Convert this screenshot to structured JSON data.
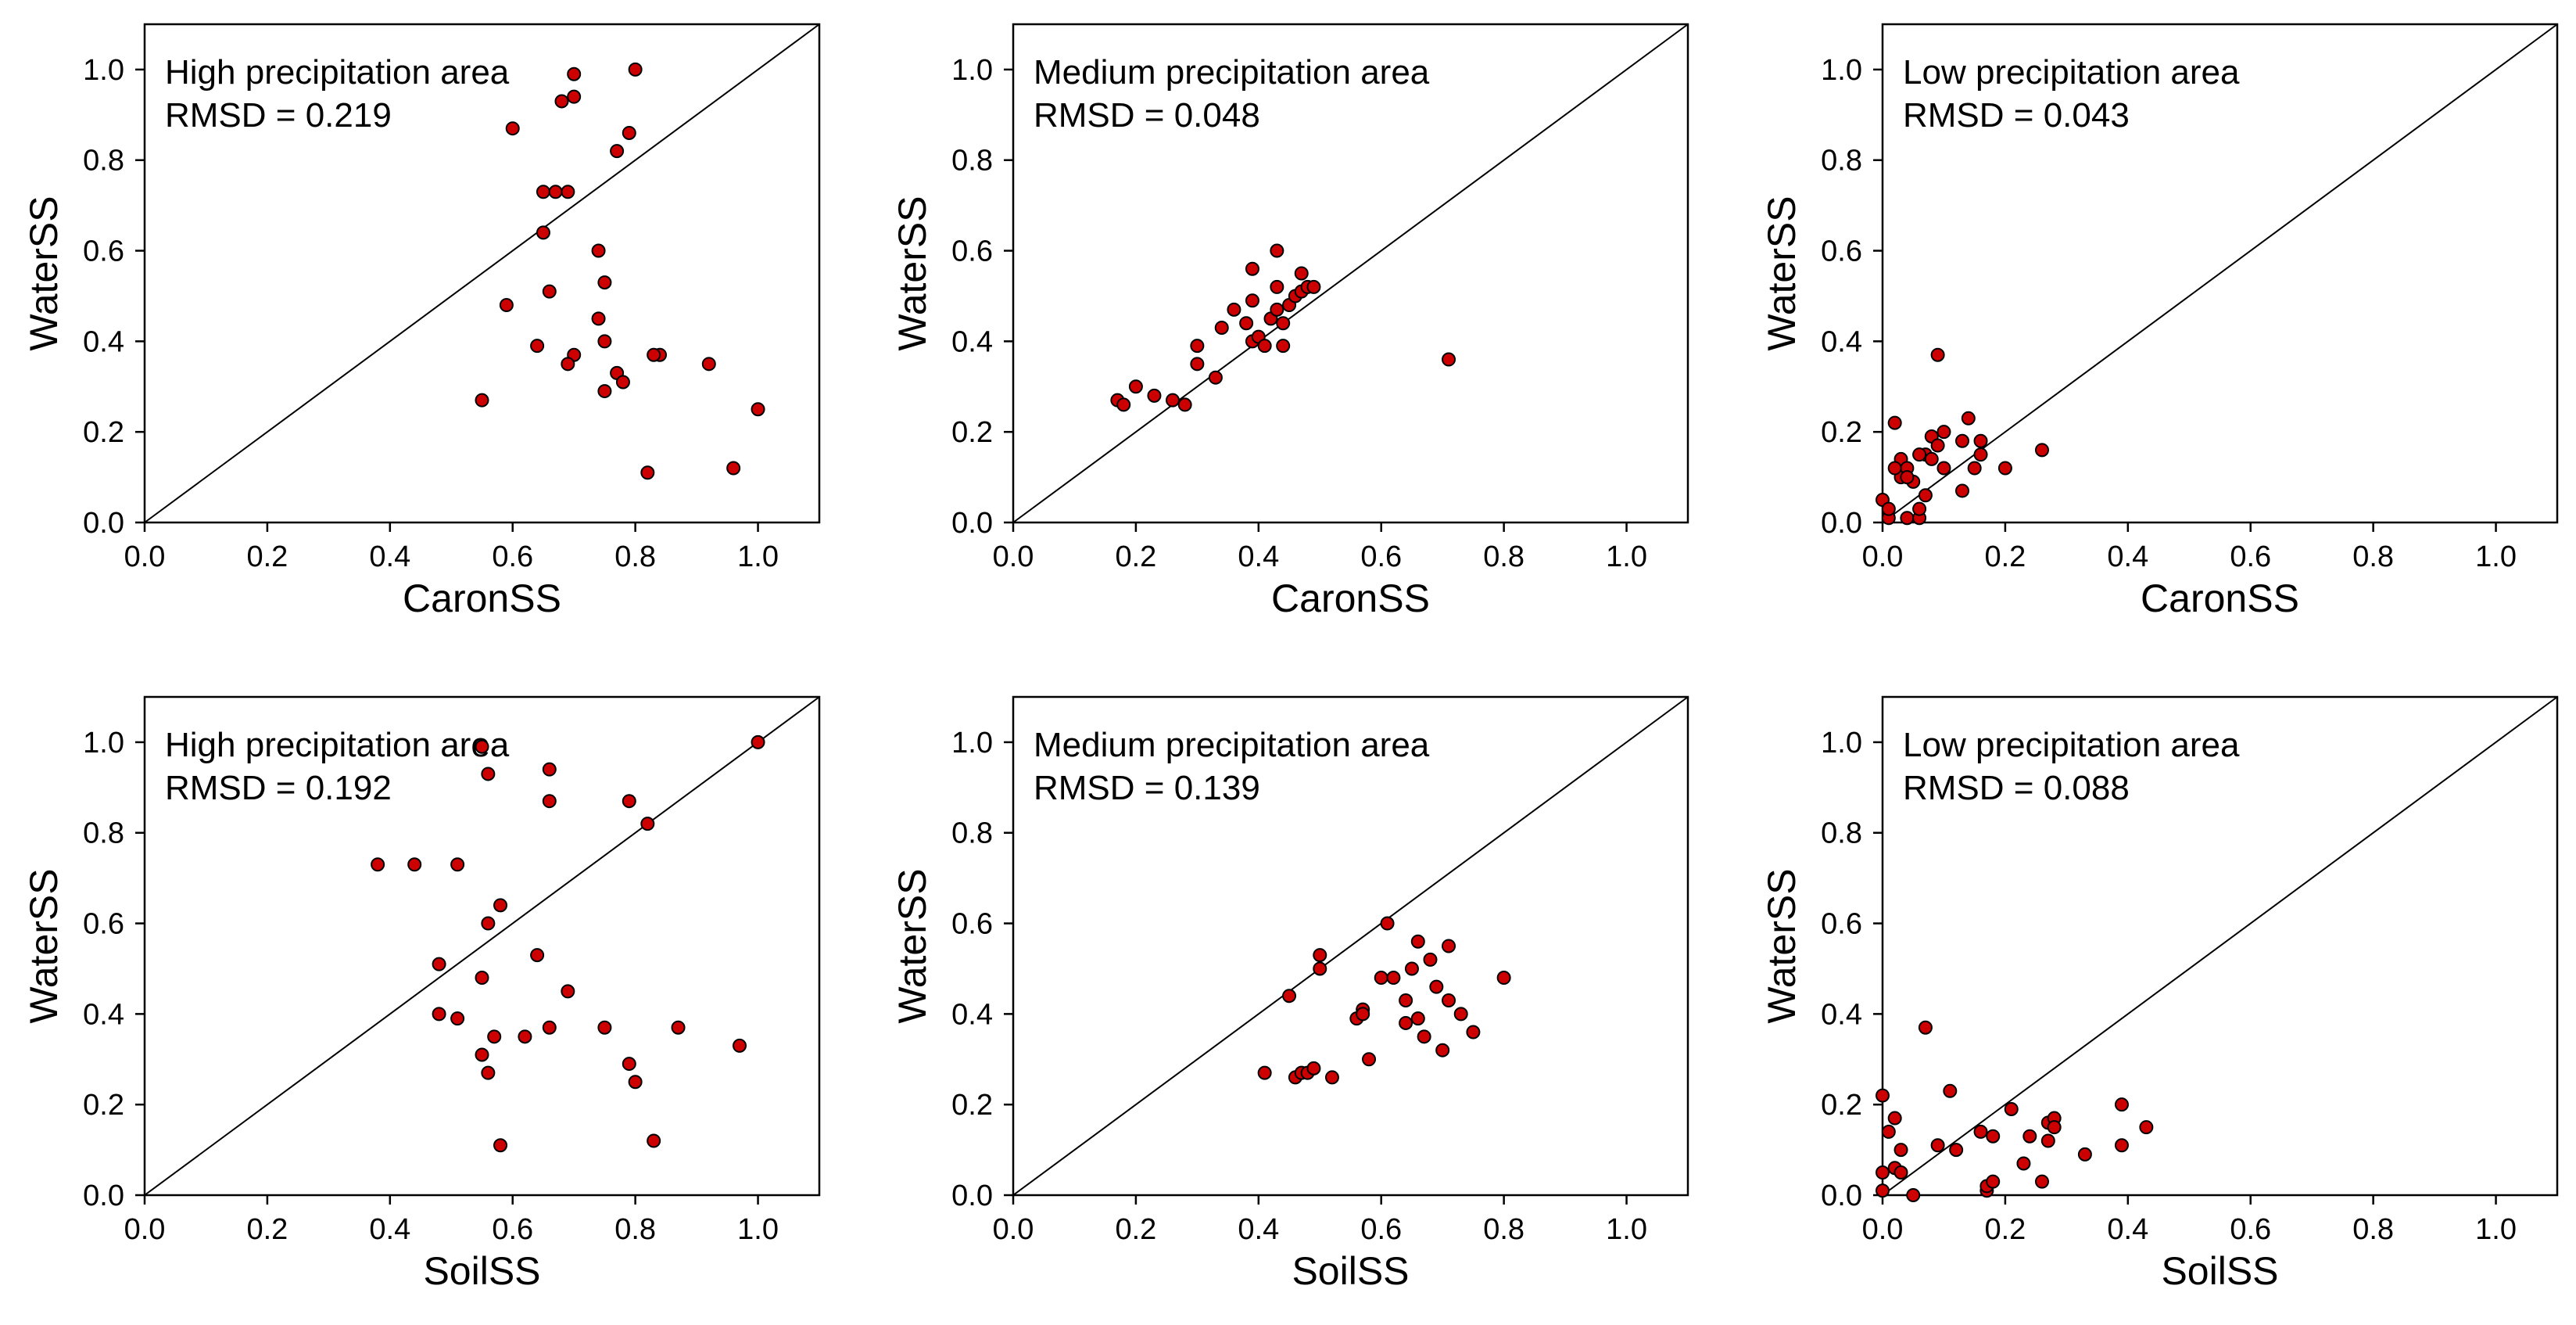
{
  "chart_data": [
    {
      "type": "scatter",
      "annotation": "High precipitation area",
      "rmsd": "RMSD = 0.219",
      "xlabel": "CaronSS",
      "ylabel": "WaterSS",
      "xlim": [
        0,
        1.1
      ],
      "ylim": [
        0,
        1.1
      ],
      "xticks": [
        "0.0",
        "0.2",
        "0.4",
        "0.6",
        "0.8",
        "1.0"
      ],
      "yticks": [
        "0.0",
        "0.2",
        "0.4",
        "0.6",
        "0.8",
        "1.0"
      ],
      "reference_line": "1:1",
      "x": [
        0.7,
        0.8,
        0.7,
        0.68,
        0.6,
        0.79,
        0.77,
        0.65,
        0.67,
        0.69,
        0.65,
        0.74,
        0.66,
        0.75,
        0.59,
        0.74,
        0.64,
        0.75,
        0.7,
        0.69,
        0.84,
        0.83,
        0.77,
        0.78,
        0.92,
        0.75,
        0.55,
        1.0,
        0.96,
        0.82
      ],
      "y": [
        0.99,
        1.0,
        0.94,
        0.93,
        0.87,
        0.86,
        0.82,
        0.73,
        0.73,
        0.73,
        0.64,
        0.6,
        0.51,
        0.53,
        0.48,
        0.45,
        0.39,
        0.4,
        0.37,
        0.35,
        0.37,
        0.37,
        0.33,
        0.31,
        0.35,
        0.29,
        0.27,
        0.25,
        0.12,
        0.11
      ]
    },
    {
      "type": "scatter",
      "annotation": "Medium precipitation area",
      "rmsd": "RMSD = 0.048",
      "xlabel": "CaronSS",
      "ylabel": "WaterSS",
      "xlim": [
        0,
        1.1
      ],
      "ylim": [
        0,
        1.1
      ],
      "xticks": [
        "0.0",
        "0.2",
        "0.4",
        "0.6",
        "0.8",
        "1.0"
      ],
      "yticks": [
        "0.0",
        "0.2",
        "0.4",
        "0.6",
        "0.8",
        "1.0"
      ],
      "reference_line": "1:1",
      "x": [
        0.17,
        0.18,
        0.2,
        0.23,
        0.26,
        0.28,
        0.3,
        0.3,
        0.33,
        0.34,
        0.36,
        0.38,
        0.39,
        0.39,
        0.4,
        0.41,
        0.42,
        0.43,
        0.43,
        0.43,
        0.44,
        0.44,
        0.45,
        0.46,
        0.47,
        0.47,
        0.48,
        0.49,
        0.39,
        0.71
      ],
      "y": [
        0.27,
        0.26,
        0.3,
        0.28,
        0.27,
        0.26,
        0.35,
        0.39,
        0.32,
        0.43,
        0.47,
        0.44,
        0.4,
        0.56,
        0.41,
        0.39,
        0.45,
        0.6,
        0.52,
        0.47,
        0.39,
        0.44,
        0.48,
        0.5,
        0.51,
        0.55,
        0.52,
        0.52,
        0.49,
        0.36
      ]
    },
    {
      "type": "scatter",
      "annotation": "Low precipitation area",
      "rmsd": "RMSD = 0.043",
      "xlabel": "CaronSS",
      "ylabel": "WaterSS",
      "xlim": [
        0,
        1.1
      ],
      "ylim": [
        0,
        1.1
      ],
      "xticks": [
        "0.0",
        "0.2",
        "0.4",
        "0.6",
        "0.8",
        "1.0"
      ],
      "yticks": [
        "0.0",
        "0.2",
        "0.4",
        "0.6",
        "0.8",
        "1.0"
      ],
      "reference_line": "1:1",
      "x": [
        0.0,
        0.01,
        0.01,
        0.02,
        0.03,
        0.03,
        0.04,
        0.04,
        0.05,
        0.06,
        0.06,
        0.07,
        0.07,
        0.08,
        0.08,
        0.09,
        0.09,
        0.1,
        0.1,
        0.13,
        0.14,
        0.15,
        0.16,
        0.16,
        0.2,
        0.26,
        0.02,
        0.04,
        0.06,
        0.13
      ],
      "y": [
        0.05,
        0.01,
        0.03,
        0.22,
        0.14,
        0.1,
        0.12,
        0.01,
        0.09,
        0.01,
        0.03,
        0.15,
        0.06,
        0.14,
        0.19,
        0.37,
        0.17,
        0.2,
        0.12,
        0.07,
        0.23,
        0.12,
        0.18,
        0.15,
        0.12,
        0.16,
        0.12,
        0.1,
        0.15,
        0.18
      ]
    },
    {
      "type": "scatter",
      "annotation": "High precipitation area",
      "rmsd": "RMSD = 0.192",
      "xlabel": "SoilSS",
      "ylabel": "WaterSS",
      "xlim": [
        0,
        1.1
      ],
      "ylim": [
        0,
        1.1
      ],
      "xticks": [
        "0.0",
        "0.2",
        "0.4",
        "0.6",
        "0.8",
        "1.0"
      ],
      "yticks": [
        "0.0",
        "0.2",
        "0.4",
        "0.6",
        "0.8",
        "1.0"
      ],
      "reference_line": "1:1",
      "x": [
        1.0,
        0.55,
        0.66,
        0.56,
        0.66,
        0.79,
        0.82,
        0.38,
        0.44,
        0.51,
        0.58,
        0.56,
        0.48,
        0.64,
        0.55,
        0.69,
        0.48,
        0.51,
        0.57,
        0.62,
        0.66,
        0.75,
        0.87,
        0.55,
        0.97,
        0.79,
        0.8,
        0.56,
        0.83,
        0.58
      ],
      "y": [
        1.0,
        0.99,
        0.94,
        0.93,
        0.87,
        0.87,
        0.82,
        0.73,
        0.73,
        0.73,
        0.64,
        0.6,
        0.51,
        0.53,
        0.48,
        0.45,
        0.4,
        0.39,
        0.35,
        0.35,
        0.37,
        0.37,
        0.37,
        0.31,
        0.33,
        0.29,
        0.25,
        0.27,
        0.12,
        0.11
      ]
    },
    {
      "type": "scatter",
      "annotation": "Medium precipitation area",
      "rmsd": "RMSD = 0.139",
      "xlabel": "SoilSS",
      "ylabel": "WaterSS",
      "xlim": [
        0,
        1.1
      ],
      "ylim": [
        0,
        1.1
      ],
      "xticks": [
        "0.0",
        "0.2",
        "0.4",
        "0.6",
        "0.8",
        "1.0"
      ],
      "yticks": [
        "0.0",
        "0.2",
        "0.4",
        "0.6",
        "0.8",
        "1.0"
      ],
      "reference_line": "1:1",
      "x": [
        0.41,
        0.46,
        0.47,
        0.48,
        0.49,
        0.5,
        0.5,
        0.52,
        0.45,
        0.56,
        0.57,
        0.57,
        0.58,
        0.6,
        0.61,
        0.62,
        0.64,
        0.64,
        0.65,
        0.66,
        0.66,
        0.67,
        0.68,
        0.69,
        0.7,
        0.71,
        0.71,
        0.73,
        0.75,
        0.8
      ],
      "y": [
        0.27,
        0.26,
        0.27,
        0.27,
        0.28,
        0.5,
        0.53,
        0.26,
        0.44,
        0.39,
        0.41,
        0.4,
        0.3,
        0.48,
        0.6,
        0.48,
        0.43,
        0.38,
        0.5,
        0.39,
        0.56,
        0.35,
        0.52,
        0.46,
        0.32,
        0.43,
        0.55,
        0.4,
        0.36,
        0.48
      ]
    },
    {
      "type": "scatter",
      "annotation": "Low precipitation area",
      "rmsd": "RMSD = 0.088",
      "xlabel": "SoilSS",
      "ylabel": "WaterSS",
      "xlim": [
        0,
        1.1
      ],
      "ylim": [
        0,
        1.1
      ],
      "xticks": [
        "0.0",
        "0.2",
        "0.4",
        "0.6",
        "0.8",
        "1.0"
      ],
      "yticks": [
        "0.0",
        "0.2",
        "0.4",
        "0.6",
        "0.8",
        "1.0"
      ],
      "reference_line": "1:1",
      "x": [
        0.0,
        0.0,
        0.0,
        0.01,
        0.02,
        0.02,
        0.03,
        0.03,
        0.05,
        0.07,
        0.09,
        0.11,
        0.12,
        0.16,
        0.17,
        0.17,
        0.18,
        0.18,
        0.21,
        0.23,
        0.24,
        0.26,
        0.27,
        0.27,
        0.28,
        0.28,
        0.33,
        0.39,
        0.39,
        0.43
      ],
      "y": [
        0.22,
        0.05,
        0.01,
        0.14,
        0.17,
        0.06,
        0.1,
        0.05,
        0.0,
        0.37,
        0.11,
        0.23,
        0.1,
        0.14,
        0.01,
        0.02,
        0.03,
        0.13,
        0.19,
        0.07,
        0.13,
        0.03,
        0.12,
        0.16,
        0.17,
        0.15,
        0.09,
        0.2,
        0.11,
        0.15
      ]
    }
  ]
}
